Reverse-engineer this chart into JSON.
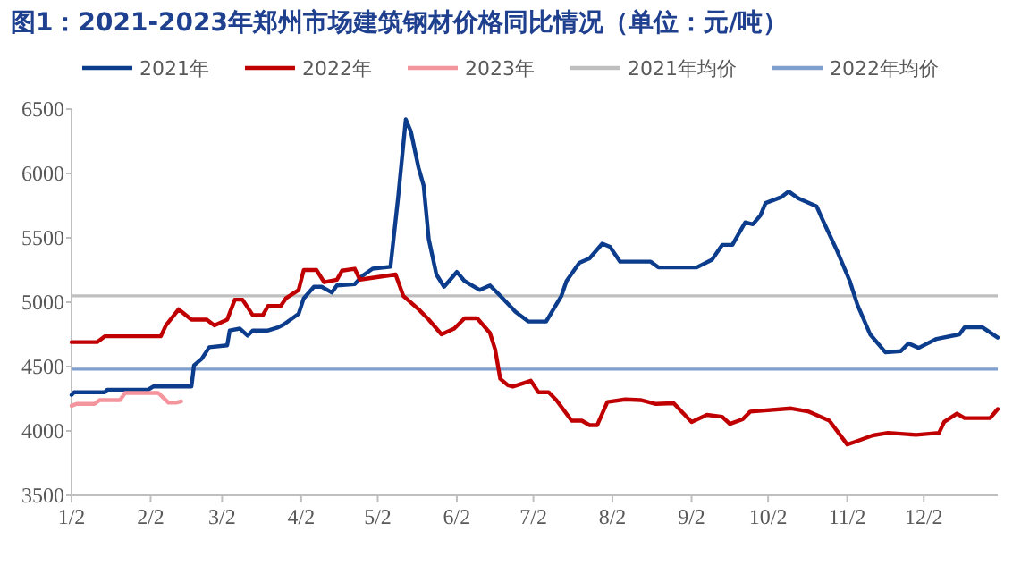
{
  "chart_data": {
    "type": "line",
    "title": "图1：2021-2023年郑州市场建筑钢材价格同比情况（单位：元/吨）",
    "x": [
      "--01-02",
      "--01-03",
      "--01-15",
      "--01-16",
      "--02-01",
      "--02-03",
      "--02-18",
      "--02-19",
      "--02-22",
      "--02-25",
      "--03-04",
      "--03-05",
      "--03-09",
      "--03-12",
      "--03-14",
      "--03-20",
      "--03-24",
      "--03-26",
      "--04-01",
      "--04-03",
      "--04-07",
      "--04-10",
      "--04-14",
      "--04-16",
      "--04-23",
      "--04-26",
      "--04-30",
      "--05-07",
      "--05-10",
      "--05-13",
      "--05-15",
      "--05-18",
      "--05-20",
      "--05-22",
      "--05-25",
      "--05-28",
      "--06-02",
      "--06-05",
      "--06-11",
      "--06-15",
      "--06-19",
      "--06-25",
      "--06-30",
      "--07-07",
      "--07-13",
      "--07-15",
      "--07-20",
      "--07-24",
      "--07-29",
      "--08-01",
      "--08-05",
      "--08-17",
      "--08-20",
      "--09-04",
      "--09-10",
      "--09-14",
      "--09-18",
      "--09-23",
      "--09-26",
      "--09-29",
      "--10-01",
      "--10-07",
      "--10-10",
      "--10-14",
      "--10-21",
      "--10-23",
      "--10-29",
      "--11-03",
      "--11-06",
      "--11-11",
      "--11-17",
      "--11-23",
      "--11-26",
      "--11-30",
      "--12-07",
      "--12-16",
      "--12-18",
      "--12-25",
      "--12-31"
    ],
    "series": [
      {
        "name": "2021年",
        "color": "#0c3c8c",
        "values": [
          4280,
          4300,
          4300,
          4320,
          4320,
          4345,
          4345,
          4510,
          4560,
          4650,
          4665,
          4780,
          4795,
          4740,
          4780,
          4780,
          4805,
          4825,
          4910,
          5030,
          5120,
          5120,
          5075,
          5130,
          5140,
          5205,
          5260,
          5275,
          5815,
          6420,
          6325,
          6045,
          5905,
          5490,
          5215,
          5120,
          5235,
          5165,
          5095,
          5130,
          5050,
          4925,
          4850,
          4850,
          5050,
          5165,
          5305,
          5340,
          5455,
          5430,
          5315,
          5315,
          5270,
          5270,
          5330,
          5445,
          5445,
          5620,
          5605,
          5675,
          5770,
          5815,
          5860,
          5805,
          5745,
          5655,
          5400,
          5165,
          4980,
          4750,
          4610,
          4620,
          4680,
          4645,
          4715,
          4750,
          4805,
          4805,
          4725
        ]
      },
      {
        "name": "2022年",
        "color": "#c00000",
        "x": [
          "--01-02",
          "--01-12",
          "--01-15",
          "--02-06",
          "--02-08",
          "--02-13",
          "--02-18",
          "--02-24",
          "--02-27",
          "--03-04",
          "--03-07",
          "--03-10",
          "--03-14",
          "--03-18",
          "--03-20",
          "--03-25",
          "--03-27",
          "--04-01",
          "--04-03",
          "--04-08",
          "--04-11",
          "--04-16",
          "--04-18",
          "--04-23",
          "--04-25",
          "--05-09",
          "--05-12",
          "--05-18",
          "--05-22",
          "--05-27",
          "--06-01",
          "--06-05",
          "--06-10",
          "--06-15",
          "--06-17",
          "--06-19",
          "--06-22",
          "--06-24",
          "--07-01",
          "--07-04",
          "--07-08",
          "--07-11",
          "--07-17",
          "--07-21",
          "--07-24",
          "--07-27",
          "--07-31",
          "--08-07",
          "--08-13",
          "--08-19",
          "--08-26",
          "--09-02",
          "--09-08",
          "--09-14",
          "--09-17",
          "--09-22",
          "--09-25",
          "--10-11",
          "--10-18",
          "--10-26",
          "--11-02",
          "--11-05",
          "--11-12",
          "--11-18",
          "--11-29",
          "--12-08",
          "--12-10",
          "--12-15",
          "--12-18",
          "--12-28",
          "--12-31"
        ],
        "values": [
          4690,
          4690,
          4735,
          4735,
          4820,
          4945,
          4865,
          4865,
          4820,
          4865,
          5020,
          5020,
          4900,
          4900,
          4970,
          4970,
          5030,
          5095,
          5250,
          5250,
          5155,
          5175,
          5245,
          5260,
          5175,
          5215,
          5050,
          4945,
          4865,
          4750,
          4795,
          4875,
          4875,
          4760,
          4635,
          4405,
          4355,
          4345,
          4390,
          4300,
          4300,
          4240,
          4080,
          4080,
          4045,
          4045,
          4225,
          4245,
          4240,
          4210,
          4215,
          4070,
          4125,
          4110,
          4055,
          4090,
          4150,
          4175,
          4150,
          4080,
          3895,
          3915,
          3965,
          3985,
          3970,
          3985,
          4070,
          4135,
          4100,
          4100,
          4170
        ]
      },
      {
        "name": "2023年",
        "color": "#f4949c",
        "x": [
          "--01-02",
          "--01-04",
          "--01-11",
          "--01-13",
          "--01-21",
          "--01-23",
          "--02-05",
          "--02-09",
          "--02-12",
          "--02-14"
        ],
        "values": [
          4195,
          4210,
          4210,
          4240,
          4240,
          4295,
          4295,
          4220,
          4220,
          4230
        ]
      }
    ],
    "ref_lines": [
      {
        "axis": "y",
        "value": 5050,
        "label": "2021年均价",
        "color": "#bfbfbf"
      },
      {
        "axis": "y",
        "value": 4480,
        "label": "2022年均价",
        "color": "#7f9fcf"
      }
    ],
    "xlim": [
      "--01-02",
      "--12-31"
    ],
    "xticks": [
      {
        "value": "--01-02",
        "label": "1/2"
      },
      {
        "value": "--02-02",
        "label": "2/2"
      },
      {
        "value": "--03-02",
        "label": "3/2"
      },
      {
        "value": "--04-02",
        "label": "4/2"
      },
      {
        "value": "--05-02",
        "label": "5/2"
      },
      {
        "value": "--06-02",
        "label": "6/2"
      },
      {
        "value": "--07-02",
        "label": "7/2"
      },
      {
        "value": "--08-02",
        "label": "8/2"
      },
      {
        "value": "--09-02",
        "label": "9/2"
      },
      {
        "value": "--10-02",
        "label": "10/2"
      },
      {
        "value": "--11-02",
        "label": "11/2"
      },
      {
        "value": "--12-02",
        "label": "12/2"
      }
    ],
    "ylim": [
      3500,
      6500
    ],
    "yticks": [
      3500,
      4000,
      4500,
      5000,
      5500,
      6000,
      6500
    ],
    "legend": "top",
    "grid": false,
    "line_style": "solid",
    "marker": "none"
  }
}
